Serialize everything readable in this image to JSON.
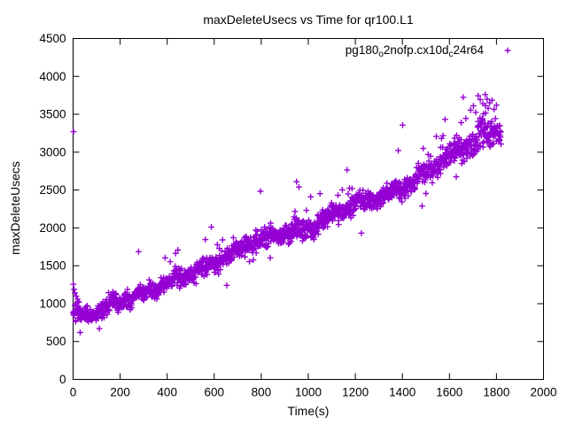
{
  "chart_data": {
    "type": "scatter",
    "title": "maxDeleteUsecs vs Time for qr100.L1",
    "xlabel": "Time(s)",
    "ylabel": "maxDeleteUsecs",
    "xlim": [
      0,
      2000
    ],
    "ylim": [
      0,
      4500
    ],
    "xticks": [
      0,
      200,
      400,
      600,
      800,
      1000,
      1200,
      1400,
      1600,
      1800,
      2000
    ],
    "yticks": [
      0,
      500,
      1000,
      1500,
      2000,
      2500,
      3000,
      3500,
      4000,
      4500
    ],
    "grid": false,
    "legend_position": "top-right-inside",
    "series": [
      {
        "name": "pg180_o2nofp.cx10d_c24r64",
        "label_segments": [
          {
            "text": "pg180"
          },
          {
            "text": "o",
            "sub": true
          },
          {
            "text": "2nofp.cx10d"
          },
          {
            "text": "c",
            "sub": true
          },
          {
            "text": "24r64"
          }
        ],
        "marker": "plus",
        "color": "#9400d3",
        "n_points": 1750,
        "x_range": [
          0,
          1820
        ],
        "trend_knots": [
          [
            0,
            880,
            140
          ],
          [
            40,
            805,
            120
          ],
          [
            100,
            900,
            110
          ],
          [
            200,
            1010,
            110
          ],
          [
            300,
            1140,
            110
          ],
          [
            400,
            1280,
            115
          ],
          [
            500,
            1400,
            120
          ],
          [
            600,
            1540,
            125
          ],
          [
            700,
            1700,
            130
          ],
          [
            800,
            1850,
            130
          ],
          [
            900,
            1930,
            130
          ],
          [
            1000,
            1980,
            135
          ],
          [
            1100,
            2160,
            135
          ],
          [
            1200,
            2320,
            130
          ],
          [
            1270,
            2380,
            120
          ],
          [
            1340,
            2420,
            125
          ],
          [
            1400,
            2530,
            140
          ],
          [
            1500,
            2740,
            160
          ],
          [
            1600,
            2960,
            170
          ],
          [
            1700,
            3140,
            175
          ],
          [
            1760,
            3230,
            175
          ],
          [
            1820,
            3250,
            165
          ]
        ],
        "noise_seed": 7,
        "p_high_outlier": 0.035,
        "p_low_outlier": 0.004,
        "wiggle": [
          [
            35,
            21
          ],
          [
            25,
            8.3
          ]
        ],
        "outliers": [
          [
            2,
            3270
          ],
          [
            1,
            1255
          ],
          [
            4,
            1190
          ],
          [
            8,
            1140
          ],
          [
            13,
            1100
          ],
          [
            19,
            1060
          ],
          [
            25,
            1020
          ],
          [
            30,
            620
          ],
          [
            950,
            2610
          ],
          [
            960,
            2540
          ],
          [
            1165,
            2765
          ],
          [
            1500,
            2455
          ],
          [
            1010,
            2410
          ],
          [
            1650,
            3390
          ],
          [
            1670,
            3445
          ],
          [
            1690,
            3555
          ],
          [
            1702,
            3610
          ],
          [
            1712,
            3525
          ],
          [
            1722,
            3745
          ],
          [
            1731,
            3695
          ],
          [
            1742,
            3640
          ],
          [
            1730,
            3450
          ],
          [
            1745,
            3505
          ],
          [
            1752,
            3760
          ],
          [
            1760,
            3700
          ],
          [
            1765,
            3580
          ],
          [
            1771,
            3650
          ],
          [
            1781,
            3685
          ],
          [
            1790,
            3565
          ],
          [
            1800,
            3620
          ]
        ]
      }
    ]
  }
}
